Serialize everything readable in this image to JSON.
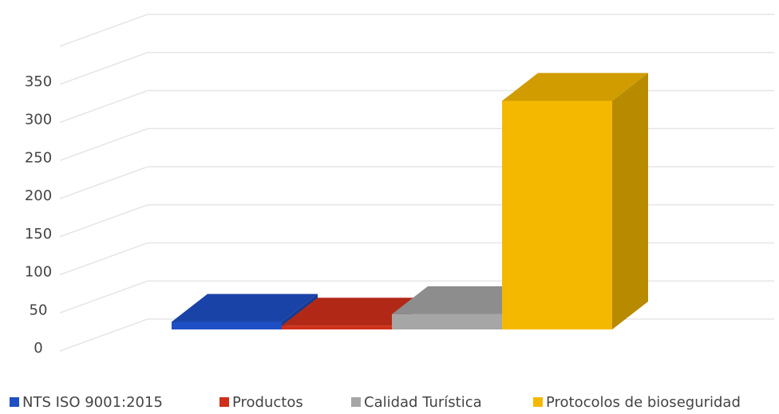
{
  "chart_data": {
    "type": "bar3d",
    "series": [
      {
        "name": "NTS ISO 9001:2015",
        "color": "#1f4fc4",
        "values": [
          10
        ]
      },
      {
        "name": "Productos",
        "color": "#d0301a",
        "values": [
          5
        ]
      },
      {
        "name": "Calidad Turística",
        "color": "#a6a6a6",
        "values": [
          20
        ]
      },
      {
        "name": "Protocolos de bioseguridad",
        "color": "#f5b800",
        "values": [
          300
        ]
      }
    ],
    "ylim": [
      0,
      400
    ],
    "yticks": [
      0,
      50,
      100,
      150,
      200,
      250,
      300,
      350
    ],
    "grid": true,
    "legend": "bottom"
  }
}
